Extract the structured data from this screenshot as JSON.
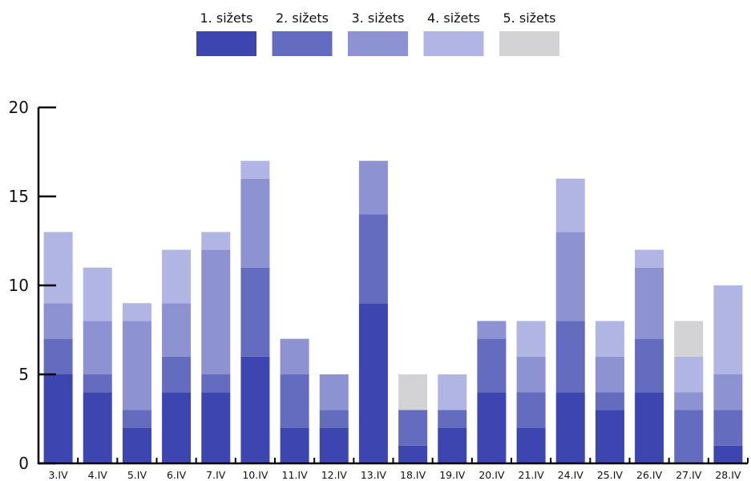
{
  "chart_data": {
    "type": "bar",
    "stacked": true,
    "categories": [
      "3.IV",
      "4.IV",
      "5.IV",
      "6.IV",
      "7.IV",
      "10.IV",
      "11.IV",
      "12.IV",
      "13.IV",
      "18.IV",
      "19.IV",
      "20.IV",
      "21.IV",
      "24.IV",
      "25.IV",
      "26.IV",
      "27.IV",
      "28.IV"
    ],
    "series": [
      {
        "name": "1. sižets",
        "color": "#3d46b0",
        "values": [
          5,
          4,
          2,
          4,
          4,
          6,
          2,
          2,
          9,
          1,
          2,
          4,
          2,
          4,
          3,
          4,
          0,
          1
        ]
      },
      {
        "name": "2. sižets",
        "color": "#646cc0",
        "values": [
          2,
          1,
          1,
          2,
          1,
          5,
          3,
          1,
          5,
          2,
          1,
          3,
          2,
          4,
          1,
          3,
          3,
          2
        ]
      },
      {
        "name": "3. sižets",
        "color": "#8c92d2",
        "values": [
          2,
          3,
          5,
          3,
          7,
          5,
          2,
          2,
          3,
          0,
          0,
          1,
          2,
          5,
          2,
          4,
          1,
          2
        ]
      },
      {
        "name": "4. sižets",
        "color": "#b1b5e3",
        "values": [
          4,
          3,
          1,
          3,
          1,
          1,
          0,
          0,
          0,
          0,
          2,
          0,
          2,
          3,
          2,
          1,
          2,
          5
        ]
      },
      {
        "name": "5. sižets",
        "color": "#d3d3d6",
        "values": [
          0,
          0,
          0,
          0,
          0,
          0,
          0,
          0,
          0,
          2,
          0,
          0,
          0,
          0,
          0,
          0,
          2,
          0
        ]
      }
    ],
    "y_ticks": [
      0,
      5,
      10,
      15,
      20
    ],
    "ylim": [
      0,
      20
    ],
    "legend_position": "top",
    "grid": false,
    "title": "",
    "xlabel": "",
    "ylabel": ""
  }
}
